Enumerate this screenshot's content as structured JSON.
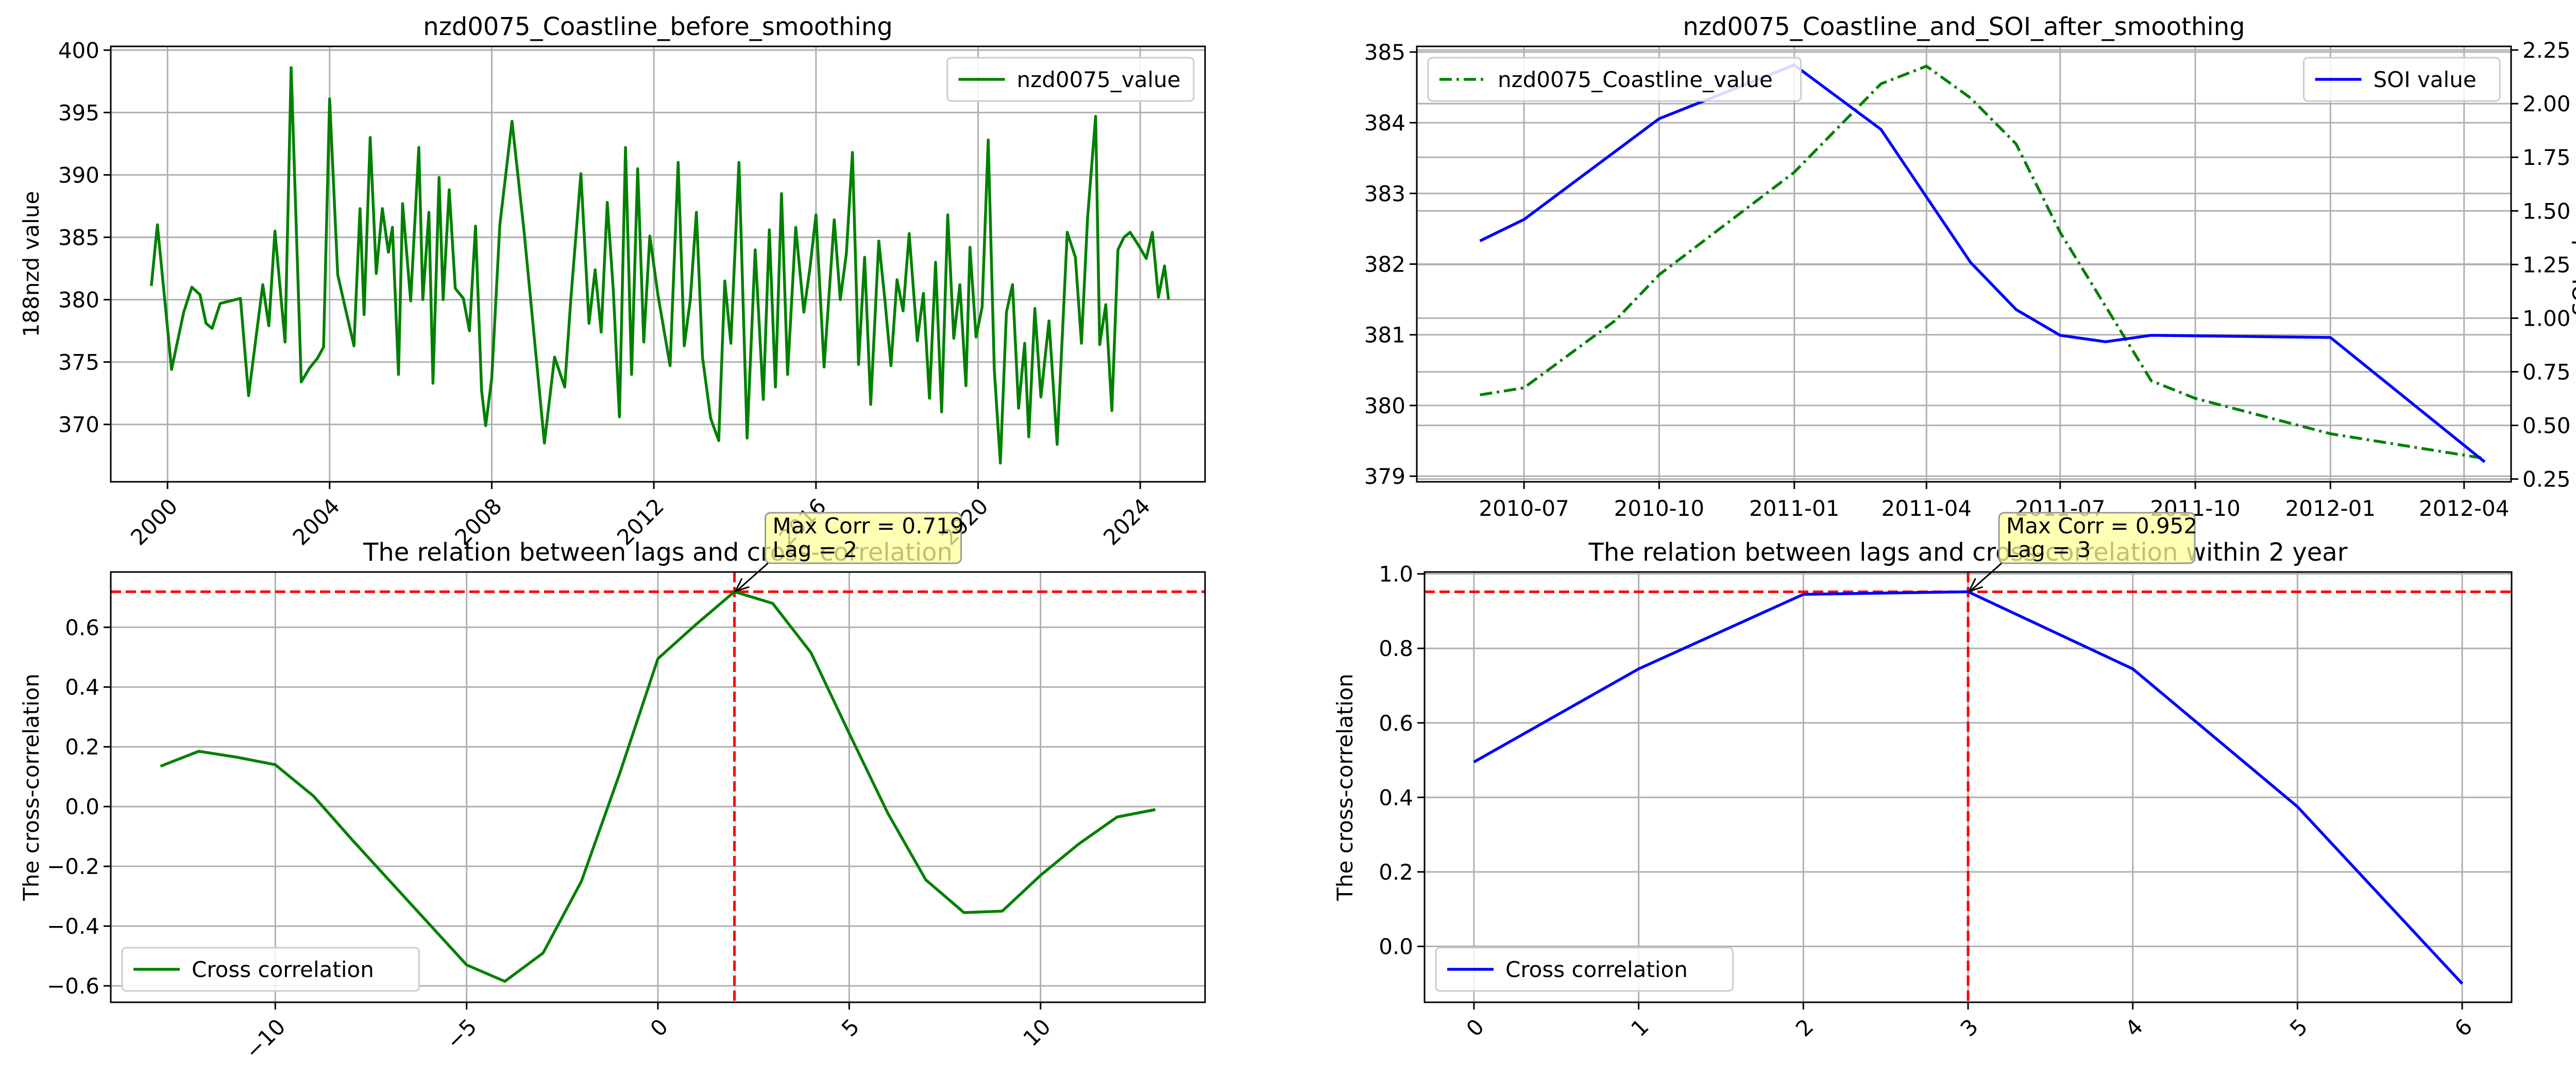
{
  "chart_data": [
    {
      "type": "line",
      "title": "nzd0075_Coastline_before_smoothing",
      "xlabel": "",
      "ylabel": "188nzd value",
      "xlim": [
        1998.6,
        2025.6
      ],
      "ylim": [
        365.4,
        400.3
      ],
      "xticks": [
        2000,
        2004,
        2008,
        2012,
        2016,
        2020,
        2024
      ],
      "xtick_labels": [
        "2000",
        "2004",
        "2008",
        "2012",
        "2016",
        "2020",
        "2024"
      ],
      "yticks": [
        370,
        375,
        380,
        385,
        390,
        395,
        400
      ],
      "ytick_labels": [
        "370",
        "375",
        "380",
        "385",
        "390",
        "395",
        "400"
      ],
      "grid": true,
      "legend": "top-right",
      "series": [
        {
          "name": "nzd0075_value",
          "color": "#008000",
          "style": "solid",
          "x": [
            1999.6,
            1999.75,
            2000.1,
            2000.4,
            2000.6,
            2000.8,
            2000.95,
            2001.1,
            2001.3,
            2001.8,
            2002.0,
            2002.35,
            2002.5,
            2002.65,
            2002.9,
            2003.05,
            2003.3,
            2003.5,
            2003.7,
            2003.85,
            2004.0,
            2004.2,
            2004.6,
            2004.75,
            2004.85,
            2005.0,
            2005.15,
            2005.3,
            2005.45,
            2005.55,
            2005.7,
            2005.8,
            2006.0,
            2006.2,
            2006.3,
            2006.45,
            2006.55,
            2006.7,
            2006.8,
            2006.95,
            2007.1,
            2007.3,
            2007.45,
            2007.6,
            2007.75,
            2007.85,
            2008.0,
            2008.2,
            2008.5,
            2008.8,
            2009.3,
            2009.55,
            2009.8,
            2009.95,
            2010.2,
            2010.4,
            2010.55,
            2010.7,
            2010.85,
            2011.0,
            2011.15,
            2011.3,
            2011.45,
            2011.6,
            2011.75,
            2011.9,
            2012.1,
            2012.4,
            2012.6,
            2012.75,
            2012.9,
            2013.05,
            2013.2,
            2013.4,
            2013.6,
            2013.75,
            2013.9,
            2014.1,
            2014.3,
            2014.5,
            2014.7,
            2014.85,
            2015.0,
            2015.15,
            2015.3,
            2015.5,
            2015.7,
            2015.85,
            2016.0,
            2016.2,
            2016.45,
            2016.6,
            2016.75,
            2016.9,
            2017.05,
            2017.2,
            2017.35,
            2017.55,
            2017.7,
            2017.85,
            2018.0,
            2018.15,
            2018.3,
            2018.5,
            2018.65,
            2018.8,
            2018.95,
            2019.1,
            2019.25,
            2019.4,
            2019.55,
            2019.7,
            2019.8,
            2019.95,
            2020.1,
            2020.25,
            2020.4,
            2020.55,
            2020.7,
            2020.85,
            2021.0,
            2021.15,
            2021.25,
            2021.4,
            2021.55,
            2021.75,
            2021.95,
            2022.2,
            2022.4,
            2022.55,
            2022.7,
            2022.9,
            2023.0,
            2023.15,
            2023.3,
            2023.45,
            2023.6,
            2023.75,
            2023.95,
            2024.15,
            2024.3,
            2024.45,
            2024.6,
            2024.7
          ],
          "values": [
            381.1,
            386.0,
            374.4,
            379.0,
            381.0,
            380.4,
            378.1,
            377.7,
            379.7,
            380.1,
            372.3,
            381.2,
            377.9,
            385.5,
            376.6,
            398.6,
            373.4,
            374.5,
            375.3,
            376.2,
            396.1,
            382.0,
            376.3,
            387.3,
            378.8,
            393.0,
            382.1,
            387.3,
            383.8,
            385.8,
            374.0,
            387.7,
            379.9,
            392.2,
            380.0,
            387.0,
            373.3,
            389.8,
            380.0,
            388.8,
            380.9,
            380.1,
            377.5,
            385.9,
            372.7,
            369.9,
            373.7,
            386.0,
            394.3,
            385.4,
            368.5,
            375.4,
            373.0,
            380.0,
            390.1,
            378.1,
            382.4,
            377.4,
            387.8,
            380.7,
            370.6,
            392.2,
            374.0,
            390.5,
            376.6,
            385.1,
            380.4,
            374.7,
            391.0,
            376.3,
            380.0,
            387.0,
            375.4,
            370.5,
            368.7,
            381.5,
            376.5,
            391.0,
            368.9,
            384.0,
            372.0,
            385.6,
            373.0,
            388.5,
            374.0,
            385.8,
            379.0,
            382.5,
            386.8,
            374.6,
            386.4,
            380.0,
            383.7,
            391.8,
            374.8,
            383.4,
            371.6,
            384.7,
            380.0,
            374.7,
            381.6,
            379.1,
            385.3,
            376.7,
            380.5,
            372.1,
            383.0,
            371.0,
            386.8,
            376.9,
            381.2,
            373.1,
            384.2,
            377.0,
            379.4,
            392.8,
            374.4,
            366.9,
            379.0,
            381.2,
            371.3,
            376.5,
            369.0,
            379.3,
            372.2,
            378.3,
            368.4,
            385.4,
            383.4,
            376.5,
            386.5,
            394.7,
            376.4,
            379.6,
            371.1,
            384.0,
            385.0,
            385.4,
            384.4,
            383.3,
            385.4,
            380.2,
            382.7,
            380.0
          ]
        }
      ]
    },
    {
      "type": "line",
      "title": "nzd0075_Coastline_and_SOI_after_smoothing",
      "xlabel": "",
      "ylabel": "",
      "y2label": "SOI value",
      "xlim": [
        "2010-04-19",
        "2012-05-03"
      ],
      "ylim": [
        378.92,
        385.08
      ],
      "y2lim": [
        0.237,
        2.267
      ],
      "xticks": [
        "2010-07-01",
        "2010-10-01",
        "2011-01-01",
        "2011-04-01",
        "2011-07-01",
        "2011-10-01",
        "2012-01-01",
        "2012-04-01"
      ],
      "xtick_labels": [
        "2010-07",
        "2010-10",
        "2011-01",
        "2011-04",
        "2011-07",
        "2011-10",
        "2012-01",
        "2012-04"
      ],
      "yticks": [
        379,
        380,
        381,
        382,
        383,
        384,
        385
      ],
      "ytick_labels": [
        "379",
        "380",
        "381",
        "382",
        "383",
        "384",
        "385"
      ],
      "y2ticks": [
        0.25,
        0.5,
        0.75,
        1.0,
        1.25,
        1.5,
        1.75,
        2.0,
        2.25
      ],
      "y2tick_labels": [
        "0.25",
        "0.50",
        "0.75",
        "1.00",
        "1.25",
        "1.50",
        "1.75",
        "2.00",
        "2.25"
      ],
      "grid": true,
      "series": [
        {
          "name": "nzd0075_Coastline_value",
          "axis": "left",
          "legend": "top-left",
          "color": "#008000",
          "style": "dashdot",
          "x": [
            "2010-06-01",
            "2010-07-01",
            "2010-09-01",
            "2010-10-01",
            "2011-01-01",
            "2011-03-01",
            "2011-04-01",
            "2011-05-01",
            "2011-06-01",
            "2011-07-01",
            "2011-09-01",
            "2011-10-01",
            "2012-01-01",
            "2012-04-15"
          ],
          "values": [
            380.15,
            380.25,
            381.2,
            381.85,
            383.3,
            384.55,
            384.8,
            384.35,
            383.7,
            382.45,
            380.35,
            380.1,
            379.6,
            379.25
          ]
        },
        {
          "name": "SOI value",
          "axis": "right",
          "legend": "top-right",
          "color": "#0000ff",
          "style": "solid",
          "x": [
            "2010-06-01",
            "2010-07-01",
            "2010-10-01",
            "2011-01-01",
            "2011-03-01",
            "2011-05-01",
            "2011-06-01",
            "2011-07-01",
            "2011-08-01",
            "2011-09-01",
            "2012-01-01",
            "2012-04-15"
          ],
          "values": [
            1.36,
            1.46,
            1.93,
            2.18,
            1.88,
            1.26,
            1.04,
            0.92,
            0.89,
            0.92,
            0.91,
            0.33
          ]
        }
      ]
    },
    {
      "type": "line",
      "title": "The relation between lags and cross-correlation",
      "xlabel": "",
      "ylabel": "The cross-correlation",
      "xlim": [
        -14.3,
        14.3
      ],
      "ylim": [
        -0.655,
        0.785
      ],
      "xticks": [
        -10,
        -5,
        0,
        5,
        10
      ],
      "xtick_labels": [
        "−10",
        "−5",
        "0",
        "5",
        "10"
      ],
      "yticks": [
        -0.6,
        -0.4,
        -0.2,
        0.0,
        0.2,
        0.4,
        0.6
      ],
      "ytick_labels": [
        "−0.6",
        "−0.4",
        "−0.2",
        "0.0",
        "0.2",
        "0.4",
        "0.6"
      ],
      "grid": true,
      "legend": "bottom-left",
      "series": [
        {
          "name": "Cross correlation",
          "color": "#008000",
          "style": "solid",
          "x": [
            -13,
            -12,
            -11,
            -10,
            -9,
            -8,
            -7,
            -6,
            -5,
            -4,
            -3,
            -2,
            -1,
            0,
            1,
            2,
            3,
            4,
            5,
            6,
            7,
            8,
            9,
            10,
            11,
            12,
            13
          ],
          "values": [
            0.135,
            0.185,
            0.165,
            0.14,
            0.035,
            -0.11,
            -0.25,
            -0.39,
            -0.53,
            -0.585,
            -0.49,
            -0.25,
            0.11,
            0.495,
            0.61,
            0.719,
            0.68,
            0.515,
            0.245,
            -0.02,
            -0.245,
            -0.355,
            -0.35,
            -0.23,
            -0.125,
            -0.035,
            -0.01
          ]
        }
      ],
      "reference_lines": {
        "y": 0.719,
        "x": 2,
        "color": "#ff0000",
        "style": "dashed"
      },
      "annotation": {
        "text_line1": "Max Corr = 0.719",
        "text_line2": "Lag = 2",
        "point": [
          2,
          0.719
        ]
      }
    },
    {
      "type": "line",
      "title": "The relation between lags and cross-correlation within 2 year",
      "xlabel": "",
      "ylabel": "The cross-correlation",
      "xlim": [
        -0.3,
        6.3
      ],
      "ylim": [
        -0.15,
        1.005
      ],
      "xticks": [
        0,
        1,
        2,
        3,
        4,
        5,
        6
      ],
      "xtick_labels": [
        "0",
        "1",
        "2",
        "3",
        "4",
        "5",
        "6"
      ],
      "yticks": [
        0.0,
        0.2,
        0.4,
        0.6,
        0.8,
        1.0
      ],
      "ytick_labels": [
        "0.0",
        "0.2",
        "0.4",
        "0.6",
        "0.8",
        "1.0"
      ],
      "grid": true,
      "legend": "bottom-left",
      "series": [
        {
          "name": "Cross correlation",
          "color": "#0000ff",
          "style": "solid",
          "x": [
            0,
            1,
            2,
            3,
            4,
            5,
            6
          ],
          "values": [
            0.495,
            0.745,
            0.945,
            0.952,
            0.745,
            0.375,
            -0.1
          ]
        }
      ],
      "reference_lines": {
        "y": 0.952,
        "x": 3,
        "color": "#ff0000",
        "style": "dashed"
      },
      "annotation": {
        "text_line1": "Max Corr = 0.952",
        "text_line2": "Lag = 3",
        "point": [
          3,
          0.952
        ]
      }
    }
  ]
}
